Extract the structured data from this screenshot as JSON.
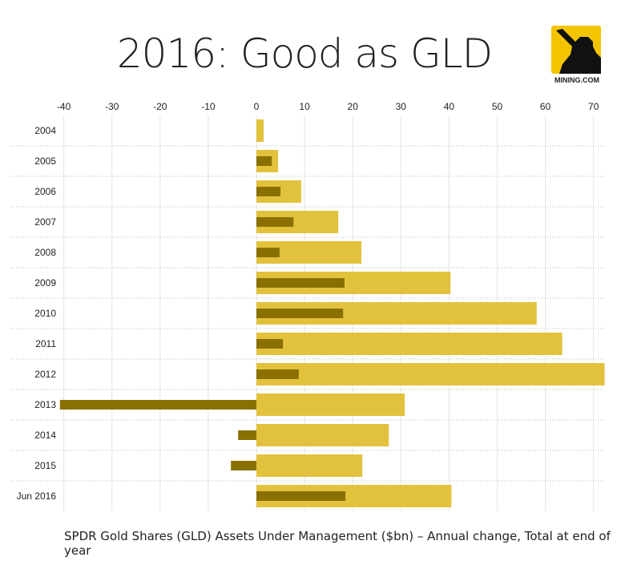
{
  "title": "2016: Good as GLD",
  "logo": {
    "text": "MINING.COM",
    "colors": {
      "background": "#f5c400",
      "figure": "#111111"
    }
  },
  "caption": "SPDR Gold Shares (GLD) Assets Under Management ($bn) – Annual change, Total at end of year",
  "chart_data": {
    "type": "bar",
    "orientation": "horizontal",
    "title": "2016: Good as GLD",
    "categories": [
      "2004",
      "2005",
      "2006",
      "2007",
      "2008",
      "2009",
      "2010",
      "2011",
      "2012",
      "2013",
      "2014",
      "2015",
      "Jun 2016"
    ],
    "series": [
      {
        "key": "total",
        "color": "#e2c23d",
        "values": [
          1.5,
          4.5,
          9.3,
          17,
          21.8,
          40.3,
          58.2,
          63.5,
          72.3,
          30.8,
          27.5,
          22,
          40.5
        ]
      },
      {
        "key": "change",
        "color": "#8a7000",
        "values": [
          null,
          3.2,
          5,
          7.7,
          4.8,
          18.3,
          18,
          5.5,
          8.8,
          -40.8,
          -3.8,
          -5.3,
          18.5
        ]
      }
    ],
    "xlim": [
      -40,
      72
    ],
    "xticks": [
      -40,
      -30,
      -20,
      -10,
      0,
      10,
      20,
      30,
      40,
      50,
      60,
      70
    ],
    "axis_position": "top",
    "grid": true
  }
}
